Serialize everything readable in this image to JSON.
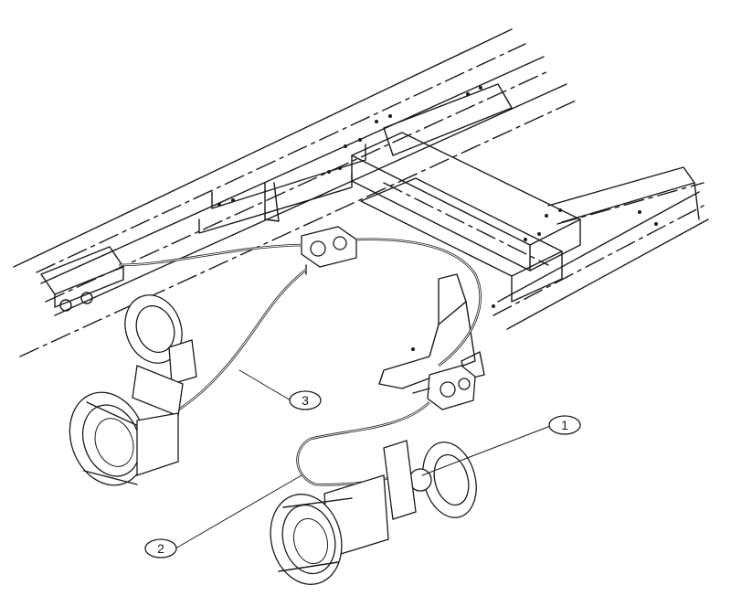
{
  "callouts": [
    {
      "id": "callout-1",
      "label": "1"
    },
    {
      "id": "callout-2",
      "label": "2"
    },
    {
      "id": "callout-3",
      "label": "3"
    }
  ],
  "colors": {
    "ink": "#1a1a1a",
    "paper": "#ffffff"
  }
}
